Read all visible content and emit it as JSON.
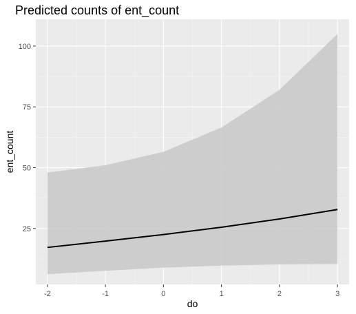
{
  "chart_data": {
    "type": "line",
    "title": "Predicted counts of ent_count",
    "xlabel": "do",
    "ylabel": "ent_count",
    "x": [
      -2,
      -1,
      0,
      1,
      2,
      3
    ],
    "xlim": [
      -2.2,
      3.2
    ],
    "ylim": [
      2,
      111
    ],
    "xticks": [
      -2,
      -1,
      0,
      1,
      2,
      3
    ],
    "yticks": [
      25,
      50,
      75,
      100
    ],
    "xtick_labels": [
      "-2",
      "-1",
      "0",
      "1",
      "2",
      "3"
    ],
    "ytick_labels": [
      "25",
      "50",
      "75",
      "100"
    ],
    "series": [
      {
        "values": [
          17.2,
          19.8,
          22.5,
          25.5,
          28.9,
          32.8
        ],
        "lower": [
          6.2,
          7.6,
          8.9,
          9.7,
          10.2,
          10.4
        ],
        "upper": [
          48,
          51,
          56.5,
          66.5,
          82,
          105
        ]
      }
    ],
    "grid": true,
    "colors": {
      "panel_background": "#ebebeb",
      "grid_major": "#ffffff",
      "grid_minor": "#f5f5f5",
      "ribbon": "#c8c8c8",
      "line": "#000000"
    }
  }
}
